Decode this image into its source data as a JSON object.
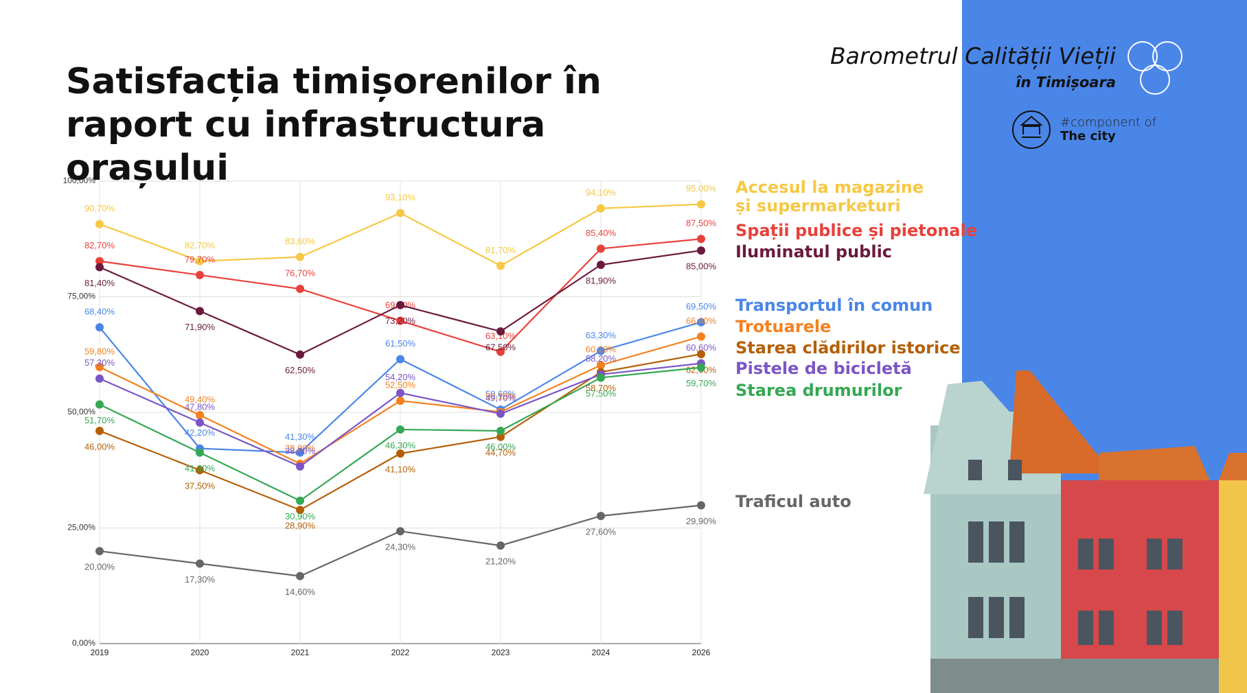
{
  "chart_data": {
    "type": "line",
    "title": "Satisfacția timișorenilor în raport cu infrastructura orașului",
    "brand": {
      "name": "Barometrul Calității Vieții",
      "city": "în Timișoara",
      "component": "#component of",
      "component_name": "The city"
    },
    "categories": [
      "2019",
      "2020",
      "2021",
      "2022",
      "2023",
      "2024",
      "2026"
    ],
    "ylim": [
      0,
      100
    ],
    "yticks": [
      {
        "value": 0,
        "label": "0,00%"
      },
      {
        "value": 25,
        "label": "25,00%"
      },
      {
        "value": 50,
        "label": "50,00%"
      },
      {
        "value": 75,
        "label": "75,00%"
      },
      {
        "value": 100,
        "label": "100,00%"
      }
    ],
    "grid": true,
    "series": [
      {
        "name": "Accesul la magazine și supermarketuri",
        "color": "#f6c844",
        "values": [
          90.7,
          82.7,
          83.6,
          93.1,
          81.7,
          94.1,
          95.0
        ],
        "value_labels": [
          "90,70%",
          "82,70%",
          "83,60%",
          "93,10%",
          "81,70%",
          "94,10%",
          "95,00%"
        ]
      },
      {
        "name": "Spații publice și pietonale",
        "color": "#e8413a",
        "values": [
          82.7,
          79.7,
          76.7,
          69.8,
          63.1,
          85.4,
          87.5
        ],
        "value_labels": [
          "82,70%",
          "79,70%",
          "76,70%",
          "69,80%",
          "63,10%",
          "85,40%",
          "87,50%"
        ]
      },
      {
        "name": "Iluminatul public",
        "color": "#6b1a3e",
        "values": [
          81.4,
          71.9,
          62.5,
          73.2,
          67.5,
          81.9,
          85.0
        ],
        "value_labels": [
          "81,40%",
          "71,90%",
          "62,50%",
          "73,20%",
          "67,50%",
          "81,90%",
          "85,00%"
        ]
      },
      {
        "name": "Transportul în comun",
        "color": "#4a86e8",
        "values": [
          68.4,
          42.2,
          41.3,
          61.5,
          50.6,
          63.3,
          69.5
        ],
        "value_labels": [
          "68,40%",
          "42,20%",
          "41,30%",
          "61,50%",
          "50,60%",
          "63,30%",
          "69,50%"
        ]
      },
      {
        "name": "Trotuarele",
        "color": "#f4811f",
        "values": [
          59.8,
          49.4,
          38.9,
          52.5,
          50.1,
          60.2,
          66.4
        ],
        "value_labels": [
          "59,80%",
          "49,40%",
          "38,90%",
          "52,50%",
          "50,10%",
          "60,20%",
          "66,40%"
        ]
      },
      {
        "name": "Starea clădirilor istorice",
        "color": "#b45f06",
        "values": [
          46.0,
          37.5,
          28.9,
          41.1,
          44.7,
          58.7,
          62.6
        ],
        "value_labels": [
          "46,00%",
          "37,50%",
          "28,90%",
          "41,10%",
          "44,70%",
          "58,70%",
          "62,60%"
        ]
      },
      {
        "name": "Pistele de bicicletă",
        "color": "#7b55c7",
        "values": [
          57.3,
          47.8,
          38.3,
          54.2,
          49.7,
          58.2,
          60.6
        ],
        "value_labels": [
          "57,30%",
          "47,80%",
          "38,30%",
          "54,20%",
          "49,70%",
          "58,20%",
          "60,60%"
        ]
      },
      {
        "name": "Starea drumurilor",
        "color": "#34a853",
        "values": [
          51.7,
          41.3,
          30.9,
          46.3,
          46.0,
          57.5,
          59.7
        ],
        "value_labels": [
          "51,70%",
          "41,30%",
          "30,90%",
          "46,30%",
          "46,00%",
          "57,50%",
          "59,70%"
        ]
      },
      {
        "name": "Traficul auto",
        "color": "#666666",
        "values": [
          20.0,
          17.3,
          14.6,
          24.3,
          21.2,
          27.6,
          29.9
        ],
        "value_labels": [
          "20,00%",
          "17,30%",
          "14,60%",
          "24,30%",
          "21,20%",
          "27,60%",
          "29,90%"
        ]
      }
    ]
  }
}
